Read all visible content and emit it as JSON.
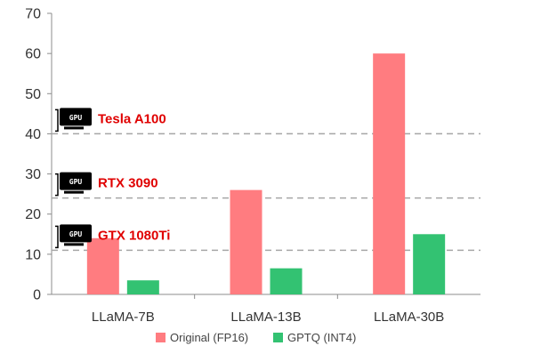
{
  "chart_data": {
    "type": "bar",
    "categories": [
      "LLaMA-7B",
      "LLaMA-13B",
      "LLaMA-30B"
    ],
    "series": [
      {
        "name": "Original (FP16)",
        "values": [
          14,
          26,
          60
        ],
        "color": "#ff7c80"
      },
      {
        "name": "GPTQ (INT4)",
        "values": [
          3.5,
          6.5,
          15
        ],
        "color": "#33c272"
      }
    ],
    "ylim": [
      0,
      70
    ],
    "yticks": [
      0,
      10,
      20,
      30,
      40,
      50,
      60,
      70
    ],
    "ytick_labels": [
      "0",
      "10",
      "20",
      "30",
      "40",
      "50",
      "60",
      "70"
    ],
    "grid": false,
    "legend": "bottom",
    "reference_lines": [
      {
        "label": "Tesla A100",
        "value": 40,
        "icon": "gpu-card-icon",
        "icon_text": "GPU",
        "color": "#e00000"
      },
      {
        "label": "RTX 3090",
        "value": 24,
        "icon": "gpu-card-icon",
        "icon_text": "GPU",
        "color": "#e00000"
      },
      {
        "label": "GTX 1080Ti",
        "value": 11,
        "icon": "gpu-card-icon",
        "icon_text": "GPU",
        "color": "#e00000"
      }
    ]
  }
}
